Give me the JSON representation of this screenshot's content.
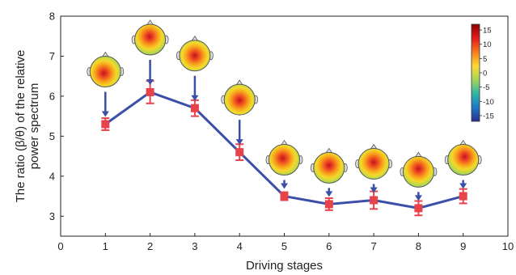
{
  "chart_data": {
    "type": "line",
    "title": "",
    "xlabel": "Driving stages",
    "ylabel_lines": [
      "The ratio (β/θ) of the relative",
      "power spectrum"
    ],
    "xlim": [
      0,
      10
    ],
    "ylim": [
      2.5,
      8
    ],
    "xticks": [
      0,
      1,
      2,
      3,
      4,
      5,
      6,
      7,
      8,
      9,
      10
    ],
    "yticks": [
      3,
      4,
      5,
      6,
      7,
      8
    ],
    "grid": false,
    "legend": "none",
    "series": [
      {
        "x": [
          1,
          2,
          3,
          4,
          5,
          6,
          7,
          8,
          9
        ],
        "y": [
          5.3,
          6.1,
          5.7,
          4.6,
          3.5,
          3.3,
          3.4,
          3.2,
          3.5
        ],
        "error": [
          0.15,
          0.28,
          0.2,
          0.2,
          0.1,
          0.15,
          0.22,
          0.18,
          0.18
        ],
        "line_color": "#3b4fa8",
        "marker_color": "#e8434a"
      }
    ],
    "topomaps": [
      {
        "x": 1,
        "hotspot": [
          0.45,
          0.55
        ]
      },
      {
        "x": 2,
        "hotspot": [
          0.48,
          0.4
        ]
      },
      {
        "x": 3,
        "hotspot": [
          0.5,
          0.5
        ]
      },
      {
        "x": 4,
        "hotspot": [
          0.5,
          0.52
        ]
      },
      {
        "x": 5,
        "hotspot": [
          0.45,
          0.45
        ]
      },
      {
        "x": 6,
        "hotspot": [
          0.5,
          0.42
        ]
      },
      {
        "x": 7,
        "hotspot": [
          0.5,
          0.45
        ]
      },
      {
        "x": 8,
        "hotspot": [
          0.5,
          0.4
        ]
      },
      {
        "x": 9,
        "hotspot": [
          0.55,
          0.4
        ]
      }
    ],
    "colorbar": {
      "ticks": [
        15,
        10,
        5,
        0,
        -5,
        -10,
        -15
      ],
      "range": [
        -17,
        17
      ],
      "colors": [
        "#8b0000",
        "#e41a1c",
        "#f47a20",
        "#fdd835",
        "#a5d65a",
        "#2db5a5",
        "#1f78c8",
        "#2b2e8f"
      ]
    },
    "arrow_color": "#3b4fa8"
  }
}
